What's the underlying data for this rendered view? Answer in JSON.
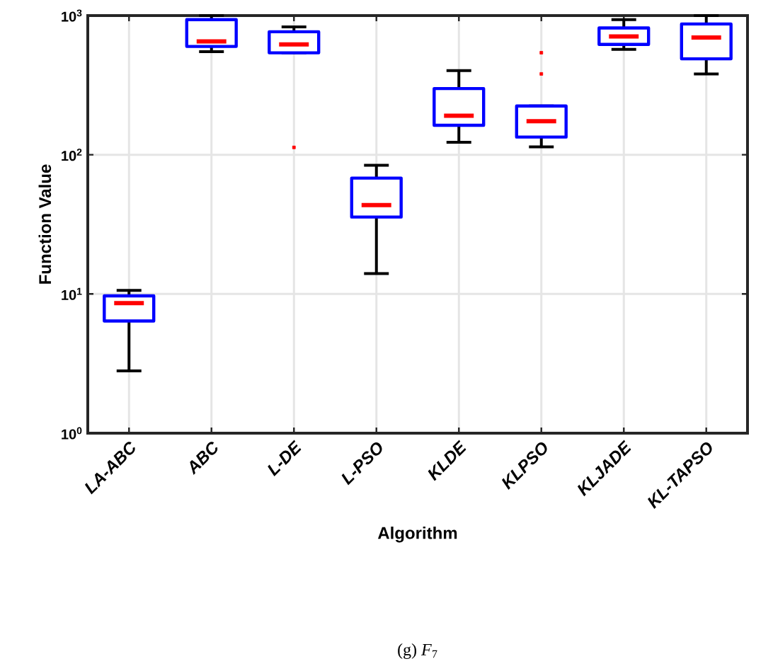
{
  "chart_data": {
    "type": "box",
    "xlabel": "Algorithm",
    "ylabel": "Function Value",
    "categories": [
      "LA-ABC",
      "ABC",
      "L-DE",
      "L-PSO",
      "KLDE",
      "KLPSO",
      "KLJADE",
      "KL-TAPSO"
    ],
    "boxes": [
      {
        "low": 2.8,
        "q1": 6.4,
        "median": 8.6,
        "q3": 9.7,
        "high": 10.6
      },
      {
        "low": 550,
        "q1": 600,
        "median": 653,
        "q3": 935,
        "high": 1000
      },
      {
        "low": 540,
        "q1": 540,
        "median": 620,
        "q3": 765,
        "high": 830,
        "outliers": [
          113
        ]
      },
      {
        "low": 14,
        "q1": 35.7,
        "median": 43.5,
        "q3": 68,
        "high": 84
      },
      {
        "low": 123,
        "q1": 163,
        "median": 191,
        "q3": 299,
        "high": 402
      },
      {
        "low": 114,
        "q1": 134,
        "median": 174,
        "q3": 224,
        "high": 224,
        "outliers": [
          381,
          541
        ]
      },
      {
        "low": 571,
        "q1": 620,
        "median": 707,
        "q3": 815,
        "high": 935
      },
      {
        "low": 381,
        "q1": 489,
        "median": 695,
        "q3": 870,
        "high": 1000
      }
    ],
    "color": "#0000ff",
    "log": true,
    "grid": true,
    "ylim": [
      1,
      1000
    ],
    "yticks": [
      {
        "value": 1,
        "label": "10$^{0}$"
      },
      {
        "value": 10,
        "label": "10$^{1}$"
      },
      {
        "value": 100,
        "label": "10$^{2}$"
      },
      {
        "value": 1000,
        "label": "10$^{3}$"
      }
    ],
    "annotations": [
      "(g) *F*$_{7}$"
    ]
  }
}
